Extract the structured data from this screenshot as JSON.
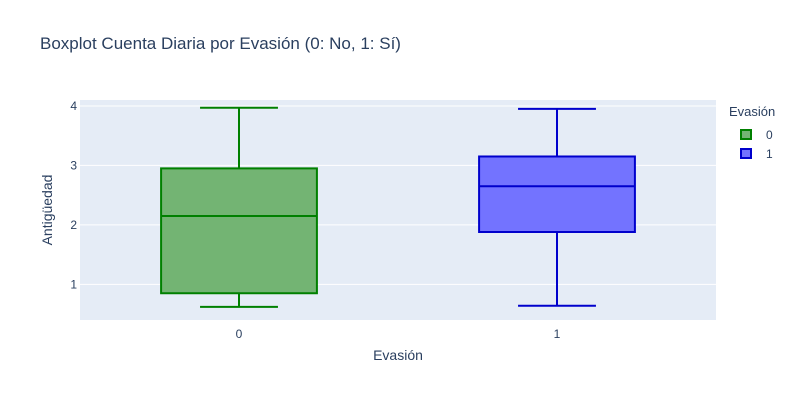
{
  "chart_data": {
    "type": "box",
    "title": "Boxplot Cuenta Diaria por Evasión (0: No, 1: Sí)",
    "xlabel": "Evasión",
    "ylabel": "Antigüedad",
    "categories": [
      "0",
      "1"
    ],
    "ylim": [
      0.4,
      4.1
    ],
    "yticks": [
      1,
      2,
      3,
      4
    ],
    "grid": true,
    "legend": {
      "title": "Evasión",
      "placement": "right"
    },
    "series": [
      {
        "name": "0",
        "color": "#008000",
        "fill": "#73b473",
        "min": 0.62,
        "q1": 0.85,
        "median": 2.15,
        "q3": 2.95,
        "max": 3.97
      },
      {
        "name": "1",
        "color": "#0000cc",
        "fill": "#7373ff",
        "min": 0.64,
        "q1": 1.88,
        "median": 2.65,
        "q3": 3.15,
        "max": 3.95
      }
    ]
  }
}
